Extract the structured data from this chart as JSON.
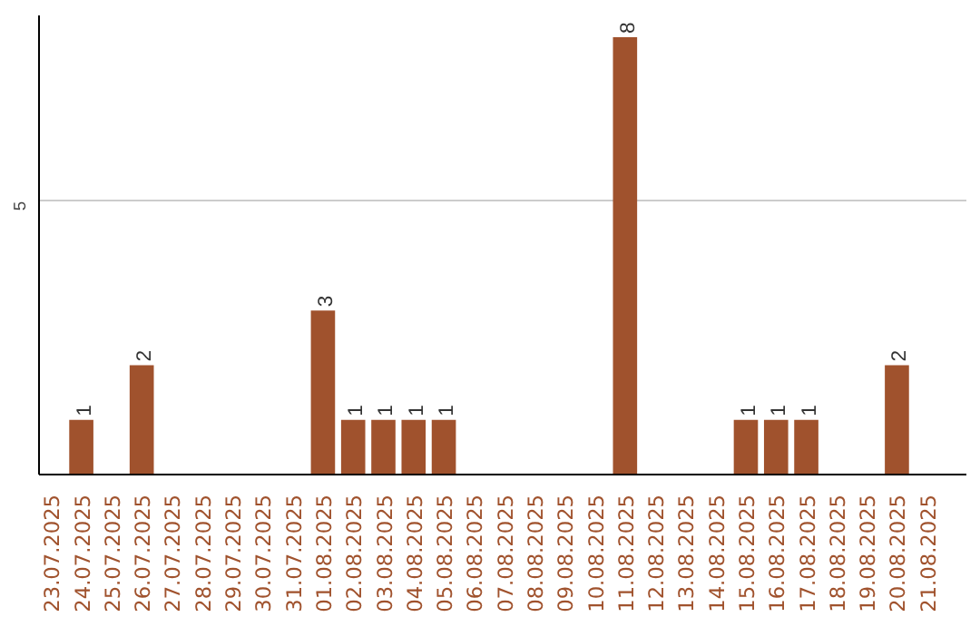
{
  "chart_data": {
    "type": "bar",
    "categories": [
      "23.07.2025",
      "24.07.2025",
      "25.07.2025",
      "26.07.2025",
      "27.07.2025",
      "28.07.2025",
      "29.07.2025",
      "30.07.2025",
      "31.07.2025",
      "01.08.2025",
      "02.08.2025",
      "03.08.2025",
      "04.08.2025",
      "05.08.2025",
      "06.08.2025",
      "07.08.2025",
      "08.08.2025",
      "09.08.2025",
      "10.08.2025",
      "11.08.2025",
      "12.08.2025",
      "13.08.2025",
      "14.08.2025",
      "15.08.2025",
      "16.08.2025",
      "17.08.2025",
      "18.08.2025",
      "19.08.2025",
      "20.08.2025",
      "21.08.2025"
    ],
    "values": [
      0,
      1,
      0,
      2,
      0,
      0,
      0,
      0,
      0,
      3,
      1,
      1,
      1,
      1,
      0,
      0,
      0,
      0,
      0,
      8,
      0,
      0,
      0,
      1,
      1,
      1,
      0,
      0,
      2,
      0
    ],
    "value_labels": [
      null,
      "1",
      null,
      "2",
      null,
      null,
      null,
      null,
      null,
      "3",
      "1",
      "1",
      "1",
      "1",
      null,
      null,
      null,
      null,
      null,
      "8",
      null,
      null,
      null,
      "1",
      "1",
      "1",
      null,
      null,
      "2",
      null
    ],
    "color": "#a0522d",
    "ylim": [
      0,
      8.4
    ],
    "yticks": [
      5
    ],
    "grid": "y"
  }
}
